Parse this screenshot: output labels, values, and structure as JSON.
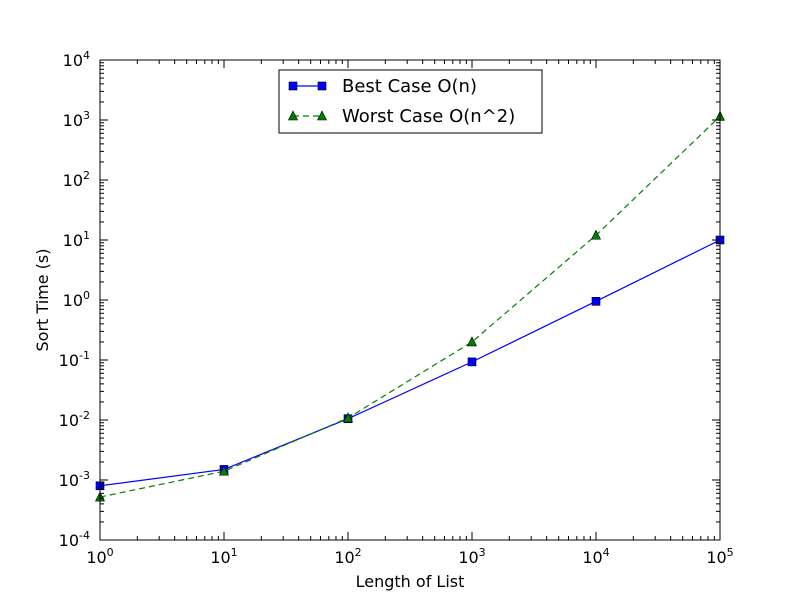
{
  "chart_data": {
    "type": "line",
    "title": "",
    "xlabel": "Length of List",
    "ylabel": "Sort Time (s)",
    "xscale": "log",
    "yscale": "log",
    "xlim": [
      1,
      100000
    ],
    "ylim": [
      0.0001,
      10000
    ],
    "grid": false,
    "legend_position": "top-center",
    "x_ticks": [
      {
        "base": "10",
        "exp": "0",
        "value": 1
      },
      {
        "base": "10",
        "exp": "1",
        "value": 10
      },
      {
        "base": "10",
        "exp": "2",
        "value": 100
      },
      {
        "base": "10",
        "exp": "3",
        "value": 1000
      },
      {
        "base": "10",
        "exp": "4",
        "value": 10000
      },
      {
        "base": "10",
        "exp": "5",
        "value": 100000
      }
    ],
    "y_ticks": [
      {
        "base": "10",
        "exp": "-4",
        "value": 0.0001
      },
      {
        "base": "10",
        "exp": "-3",
        "value": 0.001
      },
      {
        "base": "10",
        "exp": "-2",
        "value": 0.01
      },
      {
        "base": "10",
        "exp": "-1",
        "value": 0.1
      },
      {
        "base": "10",
        "exp": "0",
        "value": 1
      },
      {
        "base": "10",
        "exp": "1",
        "value": 10
      },
      {
        "base": "10",
        "exp": "2",
        "value": 100
      },
      {
        "base": "10",
        "exp": "3",
        "value": 1000
      },
      {
        "base": "10",
        "exp": "4",
        "value": 10000
      }
    ],
    "series": [
      {
        "name": "Best Case O(n)",
        "color": "#0000ff",
        "line_style": "solid",
        "marker": "square",
        "x": [
          1,
          10,
          100,
          1000,
          10000,
          100000
        ],
        "y": [
          0.0008,
          0.0015,
          0.0105,
          0.093,
          0.95,
          10
        ]
      },
      {
        "name": "Worst Case O(n^2)",
        "color": "#008000",
        "line_style": "dashed",
        "marker": "triangle",
        "x": [
          1,
          10,
          100,
          1000,
          10000,
          100000
        ],
        "y": [
          0.00052,
          0.0014,
          0.0108,
          0.2,
          12,
          1150
        ]
      }
    ]
  }
}
